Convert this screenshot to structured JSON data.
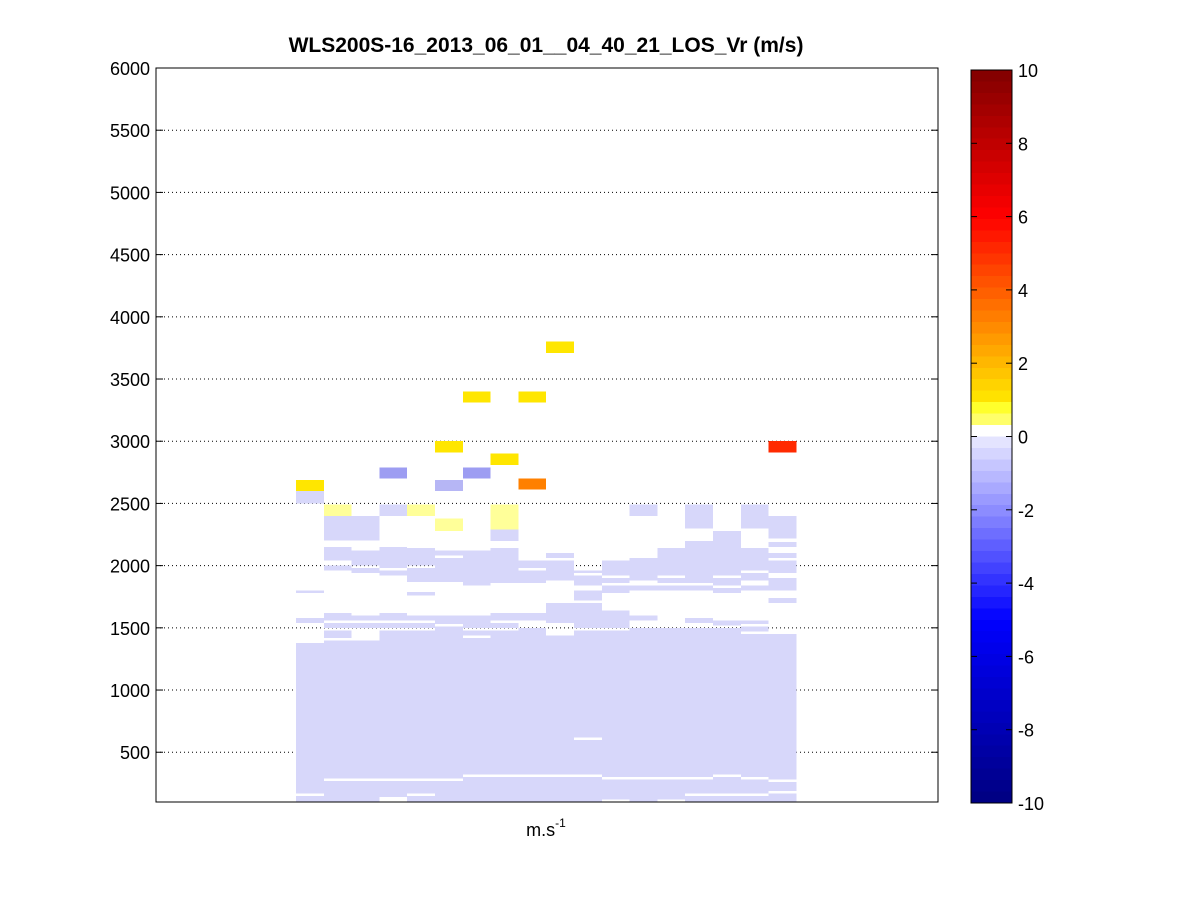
{
  "chart_data": {
    "type": "heatmap",
    "title": "WLS200S-16_2013_06_01__04_40_21_LOS_Vr (m/s)",
    "xlabel": "m.s",
    "xlabel_superscript": "-1",
    "ylabel": "",
    "ylim": [
      100,
      6000
    ],
    "yticks": [
      500,
      1000,
      1500,
      2000,
      2500,
      3000,
      3500,
      4000,
      4500,
      5000,
      5500,
      6000
    ],
    "grid": "horizontal dotted",
    "colorbar": {
      "range": [
        -10,
        10
      ],
      "ticks": [
        -10,
        -8,
        -6,
        -4,
        -2,
        0,
        2,
        4,
        6,
        8,
        10
      ],
      "position": "right"
    },
    "columns": 18,
    "cells": [
      {
        "col": 0,
        "y0": 100,
        "y1": 150,
        "v": -0.5
      },
      {
        "col": 0,
        "y0": 170,
        "y1": 1380,
        "v": -0.5
      },
      {
        "col": 0,
        "y0": 1540,
        "y1": 1580,
        "v": -0.5
      },
      {
        "col": 0,
        "y0": 1780,
        "y1": 1800,
        "v": -0.5
      },
      {
        "col": 0,
        "y0": 2500,
        "y1": 2600,
        "v": -0.3
      },
      {
        "col": 0,
        "y0": 2600,
        "y1": 2690,
        "v": 1.2
      },
      {
        "col": 1,
        "y0": 100,
        "y1": 270,
        "v": -0.5
      },
      {
        "col": 1,
        "y0": 290,
        "y1": 1400,
        "v": -0.5
      },
      {
        "col": 1,
        "y0": 1420,
        "y1": 1480,
        "v": -0.5
      },
      {
        "col": 1,
        "y0": 1500,
        "y1": 1540,
        "v": -0.5
      },
      {
        "col": 1,
        "y0": 1560,
        "y1": 1620,
        "v": -0.5
      },
      {
        "col": 1,
        "y0": 1960,
        "y1": 2000,
        "v": -0.5
      },
      {
        "col": 1,
        "y0": 2040,
        "y1": 2150,
        "v": -0.5
      },
      {
        "col": 1,
        "y0": 2200,
        "y1": 2400,
        "v": -0.5
      },
      {
        "col": 1,
        "y0": 2400,
        "y1": 2490,
        "v": 0.5
      },
      {
        "col": 2,
        "y0": 100,
        "y1": 270,
        "v": -0.5
      },
      {
        "col": 2,
        "y0": 290,
        "y1": 1400,
        "v": -0.5
      },
      {
        "col": 2,
        "y0": 1500,
        "y1": 1540,
        "v": -0.5
      },
      {
        "col": 2,
        "y0": 1560,
        "y1": 1600,
        "v": -0.5
      },
      {
        "col": 2,
        "y0": 1940,
        "y1": 1980,
        "v": -0.5
      },
      {
        "col": 2,
        "y0": 2000,
        "y1": 2120,
        "v": -0.5
      },
      {
        "col": 2,
        "y0": 2200,
        "y1": 2400,
        "v": -0.5
      },
      {
        "col": 3,
        "y0": 140,
        "y1": 270,
        "v": -0.5
      },
      {
        "col": 3,
        "y0": 290,
        "y1": 1480,
        "v": -0.5
      },
      {
        "col": 3,
        "y0": 1500,
        "y1": 1540,
        "v": -0.5
      },
      {
        "col": 3,
        "y0": 1560,
        "y1": 1620,
        "v": -0.5
      },
      {
        "col": 3,
        "y0": 1920,
        "y1": 1960,
        "v": -0.5
      },
      {
        "col": 3,
        "y0": 1980,
        "y1": 2150,
        "v": -0.5
      },
      {
        "col": 3,
        "y0": 2400,
        "y1": 2490,
        "v": -0.5
      },
      {
        "col": 3,
        "y0": 2700,
        "y1": 2790,
        "v": -1.8
      },
      {
        "col": 4,
        "y0": 100,
        "y1": 150,
        "v": -0.5
      },
      {
        "col": 4,
        "y0": 170,
        "y1": 270,
        "v": -0.5
      },
      {
        "col": 4,
        "y0": 290,
        "y1": 1480,
        "v": -0.5
      },
      {
        "col": 4,
        "y0": 1500,
        "y1": 1540,
        "v": -0.5
      },
      {
        "col": 4,
        "y0": 1560,
        "y1": 1600,
        "v": -0.5
      },
      {
        "col": 4,
        "y0": 1760,
        "y1": 1790,
        "v": -0.5
      },
      {
        "col": 4,
        "y0": 1870,
        "y1": 1980,
        "v": -0.5
      },
      {
        "col": 4,
        "y0": 2000,
        "y1": 2140,
        "v": -0.5
      },
      {
        "col": 4,
        "y0": 2400,
        "y1": 2490,
        "v": 0.5
      },
      {
        "col": 5,
        "y0": 100,
        "y1": 270,
        "v": -0.5
      },
      {
        "col": 5,
        "y0": 290,
        "y1": 1510,
        "v": -0.5
      },
      {
        "col": 5,
        "y0": 1530,
        "y1": 1600,
        "v": -0.5
      },
      {
        "col": 5,
        "y0": 1870,
        "y1": 2060,
        "v": -0.5
      },
      {
        "col": 5,
        "y0": 2080,
        "y1": 2120,
        "v": -0.5
      },
      {
        "col": 5,
        "y0": 2280,
        "y1": 2380,
        "v": 0.5
      },
      {
        "col": 5,
        "y0": 2600,
        "y1": 2690,
        "v": -1.3
      },
      {
        "col": 5,
        "y0": 2910,
        "y1": 3000,
        "v": 1.5
      },
      {
        "col": 6,
        "y0": 100,
        "y1": 300,
        "v": -0.5
      },
      {
        "col": 6,
        "y0": 320,
        "y1": 1420,
        "v": -0.5
      },
      {
        "col": 6,
        "y0": 1440,
        "y1": 1480,
        "v": -0.5
      },
      {
        "col": 6,
        "y0": 1500,
        "y1": 1600,
        "v": -0.5
      },
      {
        "col": 6,
        "y0": 1840,
        "y1": 2120,
        "v": -0.5
      },
      {
        "col": 6,
        "y0": 2700,
        "y1": 2790,
        "v": -2.2
      },
      {
        "col": 6,
        "y0": 3310,
        "y1": 3400,
        "v": 1.5
      },
      {
        "col": 7,
        "y0": 100,
        "y1": 300,
        "v": -0.5
      },
      {
        "col": 7,
        "y0": 320,
        "y1": 1480,
        "v": -0.5
      },
      {
        "col": 7,
        "y0": 1500,
        "y1": 1540,
        "v": -0.5
      },
      {
        "col": 7,
        "y0": 1560,
        "y1": 1620,
        "v": -0.5
      },
      {
        "col": 7,
        "y0": 1860,
        "y1": 2140,
        "v": -0.5
      },
      {
        "col": 7,
        "y0": 2200,
        "y1": 2290,
        "v": -0.5
      },
      {
        "col": 7,
        "y0": 2290,
        "y1": 2490,
        "v": 0.5
      },
      {
        "col": 7,
        "y0": 2810,
        "y1": 2900,
        "v": 1.5
      },
      {
        "col": 8,
        "y0": 100,
        "y1": 300,
        "v": -0.5
      },
      {
        "col": 8,
        "y0": 320,
        "y1": 1500,
        "v": -0.5
      },
      {
        "col": 8,
        "y0": 1560,
        "y1": 1620,
        "v": -0.5
      },
      {
        "col": 8,
        "y0": 1860,
        "y1": 1960,
        "v": -0.5
      },
      {
        "col": 8,
        "y0": 1980,
        "y1": 2040,
        "v": -0.5
      },
      {
        "col": 8,
        "y0": 2610,
        "y1": 2700,
        "v": 3.3
      },
      {
        "col": 8,
        "y0": 3310,
        "y1": 3400,
        "v": 1.5
      },
      {
        "col": 9,
        "y0": 100,
        "y1": 300,
        "v": -0.5
      },
      {
        "col": 9,
        "y0": 320,
        "y1": 1440,
        "v": -0.5
      },
      {
        "col": 9,
        "y0": 1540,
        "y1": 1700,
        "v": -0.5
      },
      {
        "col": 9,
        "y0": 1880,
        "y1": 2040,
        "v": -0.5
      },
      {
        "col": 9,
        "y0": 2060,
        "y1": 2100,
        "v": -0.5
      },
      {
        "col": 9,
        "y0": 3710,
        "y1": 3800,
        "v": 1.5
      },
      {
        "col": 10,
        "y0": 100,
        "y1": 300,
        "v": -0.5
      },
      {
        "col": 10,
        "y0": 320,
        "y1": 600,
        "v": -0.5
      },
      {
        "col": 10,
        "y0": 620,
        "y1": 1480,
        "v": -0.5
      },
      {
        "col": 10,
        "y0": 1500,
        "y1": 1700,
        "v": -0.5
      },
      {
        "col": 10,
        "y0": 1720,
        "y1": 1800,
        "v": -0.5
      },
      {
        "col": 10,
        "y0": 1840,
        "y1": 1920,
        "v": -0.5
      },
      {
        "col": 10,
        "y0": 1940,
        "y1": 1960,
        "v": -0.5
      },
      {
        "col": 11,
        "y0": 120,
        "y1": 280,
        "v": -0.5
      },
      {
        "col": 11,
        "y0": 300,
        "y1": 1480,
        "v": -0.5
      },
      {
        "col": 11,
        "y0": 1500,
        "y1": 1640,
        "v": -0.5
      },
      {
        "col": 11,
        "y0": 1780,
        "y1": 1840,
        "v": -0.5
      },
      {
        "col": 11,
        "y0": 1860,
        "y1": 1900,
        "v": -0.5
      },
      {
        "col": 11,
        "y0": 1920,
        "y1": 2040,
        "v": -0.5
      },
      {
        "col": 12,
        "y0": 100,
        "y1": 280,
        "v": -0.5
      },
      {
        "col": 12,
        "y0": 300,
        "y1": 1500,
        "v": -0.5
      },
      {
        "col": 12,
        "y0": 1560,
        "y1": 1600,
        "v": -0.5
      },
      {
        "col": 12,
        "y0": 1800,
        "y1": 1840,
        "v": -0.5
      },
      {
        "col": 12,
        "y0": 1880,
        "y1": 2060,
        "v": -0.5
      },
      {
        "col": 12,
        "y0": 2400,
        "y1": 2490,
        "v": -0.5
      },
      {
        "col": 13,
        "y0": 120,
        "y1": 280,
        "v": -0.5
      },
      {
        "col": 13,
        "y0": 300,
        "y1": 1500,
        "v": -0.5
      },
      {
        "col": 13,
        "y0": 1800,
        "y1": 1840,
        "v": -0.5
      },
      {
        "col": 13,
        "y0": 1860,
        "y1": 1900,
        "v": -0.5
      },
      {
        "col": 13,
        "y0": 1920,
        "y1": 2140,
        "v": -0.5
      },
      {
        "col": 14,
        "y0": 100,
        "y1": 150,
        "v": -0.5
      },
      {
        "col": 14,
        "y0": 170,
        "y1": 280,
        "v": -0.5
      },
      {
        "col": 14,
        "y0": 300,
        "y1": 1500,
        "v": -0.5
      },
      {
        "col": 14,
        "y0": 1540,
        "y1": 1580,
        "v": -0.5
      },
      {
        "col": 14,
        "y0": 1800,
        "y1": 1840,
        "v": -0.5
      },
      {
        "col": 14,
        "y0": 1860,
        "y1": 2200,
        "v": -0.5
      },
      {
        "col": 14,
        "y0": 2300,
        "y1": 2490,
        "v": -0.5
      },
      {
        "col": 15,
        "y0": 100,
        "y1": 150,
        "v": -0.5
      },
      {
        "col": 15,
        "y0": 170,
        "y1": 300,
        "v": -0.5
      },
      {
        "col": 15,
        "y0": 320,
        "y1": 1500,
        "v": -0.5
      },
      {
        "col": 15,
        "y0": 1520,
        "y1": 1560,
        "v": -0.5
      },
      {
        "col": 15,
        "y0": 1780,
        "y1": 1820,
        "v": -0.5
      },
      {
        "col": 15,
        "y0": 1840,
        "y1": 1900,
        "v": -0.5
      },
      {
        "col": 15,
        "y0": 1920,
        "y1": 2280,
        "v": -0.5
      },
      {
        "col": 16,
        "y0": 100,
        "y1": 150,
        "v": -0.5
      },
      {
        "col": 16,
        "y0": 170,
        "y1": 280,
        "v": -0.5
      },
      {
        "col": 16,
        "y0": 300,
        "y1": 1450,
        "v": -0.5
      },
      {
        "col": 16,
        "y0": 1470,
        "y1": 1510,
        "v": -0.5
      },
      {
        "col": 16,
        "y0": 1530,
        "y1": 1560,
        "v": -0.5
      },
      {
        "col": 16,
        "y0": 1800,
        "y1": 1840,
        "v": -0.5
      },
      {
        "col": 16,
        "y0": 1880,
        "y1": 1940,
        "v": -0.5
      },
      {
        "col": 16,
        "y0": 1960,
        "y1": 2140,
        "v": -0.5
      },
      {
        "col": 16,
        "y0": 2300,
        "y1": 2490,
        "v": -0.5
      },
      {
        "col": 17,
        "y0": 100,
        "y1": 170,
        "v": -0.5
      },
      {
        "col": 17,
        "y0": 190,
        "y1": 260,
        "v": -0.5
      },
      {
        "col": 17,
        "y0": 280,
        "y1": 1450,
        "v": -0.5
      },
      {
        "col": 17,
        "y0": 1700,
        "y1": 1740,
        "v": -0.5
      },
      {
        "col": 17,
        "y0": 1800,
        "y1": 1900,
        "v": -0.5
      },
      {
        "col": 17,
        "y0": 1940,
        "y1": 2040,
        "v": -0.5
      },
      {
        "col": 17,
        "y0": 2060,
        "y1": 2100,
        "v": -0.5
      },
      {
        "col": 17,
        "y0": 2150,
        "y1": 2190,
        "v": -0.5
      },
      {
        "col": 17,
        "y0": 2220,
        "y1": 2400,
        "v": -0.5
      },
      {
        "col": 17,
        "y0": 2910,
        "y1": 3000,
        "v": 6.0
      }
    ]
  }
}
